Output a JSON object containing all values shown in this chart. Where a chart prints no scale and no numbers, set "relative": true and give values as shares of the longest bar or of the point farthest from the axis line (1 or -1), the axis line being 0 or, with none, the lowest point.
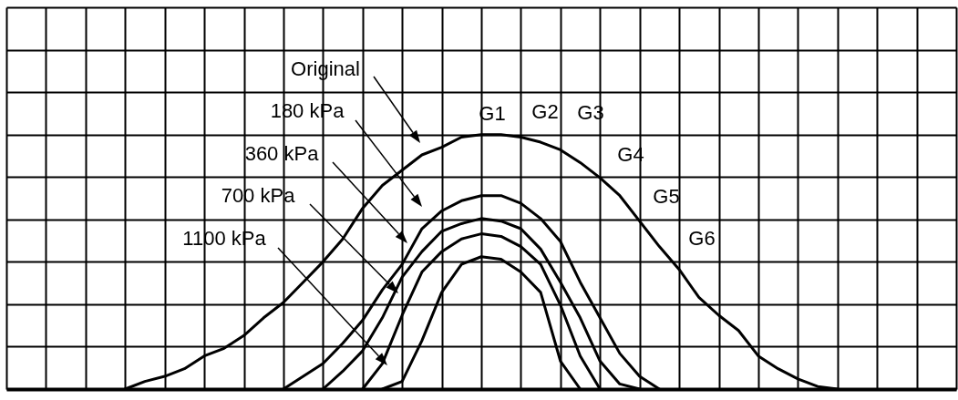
{
  "chart_data": {
    "type": "line",
    "relative": true,
    "grid": true,
    "categories": [
      null,
      null,
      null,
      null,
      null,
      null,
      null,
      null,
      null,
      null,
      null,
      null,
      null,
      null,
      null,
      null,
      null,
      null,
      null,
      null,
      null,
      null,
      null,
      null,
      null,
      null,
      null,
      null,
      null,
      null,
      null,
      null,
      null,
      null,
      null,
      null,
      null,
      null,
      null,
      null,
      null,
      null,
      null,
      null,
      null,
      null,
      null,
      null,
      null
    ],
    "series": [
      {
        "name": "Original",
        "color": "#000000",
        "values": [
          null,
          null,
          null,
          null,
          null,
          null,
          0,
          0.03,
          0.05,
          0.08,
          0.13,
          0.16,
          0.21,
          0.28,
          0.34,
          0.42,
          0.5,
          0.59,
          0.71,
          0.8,
          0.86,
          0.92,
          0.95,
          0.99,
          1,
          1,
          0.99,
          0.97,
          0.94,
          0.89,
          0.83,
          0.76,
          0.66,
          0.56,
          0.47,
          0.36,
          0.29,
          0.23,
          0.13,
          0.08,
          0.04,
          0.01,
          0,
          null,
          null,
          null,
          null,
          null,
          null
        ]
      },
      {
        "name": "180 kPa",
        "color": "#000000",
        "values": [
          null,
          null,
          null,
          null,
          null,
          null,
          null,
          null,
          null,
          null,
          null,
          null,
          null,
          null,
          0,
          0.05,
          0.1,
          0.18,
          0.27,
          0.39,
          0.49,
          0.63,
          0.7,
          0.74,
          0.76,
          0.76,
          0.73,
          0.67,
          0.58,
          0.42,
          0.28,
          0.14,
          0.05,
          0,
          null,
          null,
          null,
          null,
          null,
          null,
          null,
          null,
          null,
          null,
          null,
          null,
          null,
          null,
          null
        ]
      },
      {
        "name": "360 kPa",
        "color": "#000000",
        "values": [
          null,
          null,
          null,
          null,
          null,
          null,
          null,
          null,
          null,
          null,
          null,
          null,
          null,
          null,
          null,
          null,
          0,
          0.07,
          0.15,
          0.28,
          0.44,
          0.54,
          0.62,
          0.65,
          0.67,
          0.66,
          0.63,
          0.55,
          0.42,
          0.28,
          0.11,
          0.02,
          0,
          null,
          null,
          null,
          null,
          null,
          null,
          null,
          null,
          null,
          null,
          null,
          null,
          null,
          null,
          null,
          null
        ]
      },
      {
        "name": "700 kPa",
        "color": "#000000",
        "values": [
          null,
          null,
          null,
          null,
          null,
          null,
          null,
          null,
          null,
          null,
          null,
          null,
          null,
          null,
          null,
          null,
          null,
          null,
          0,
          0.1,
          0.29,
          0.46,
          0.54,
          0.59,
          0.61,
          0.6,
          0.56,
          0.49,
          0.33,
          0.13,
          0,
          null,
          null,
          null,
          null,
          null,
          null,
          null,
          null,
          null,
          null,
          null,
          null,
          null,
          null,
          null,
          null,
          null,
          null
        ]
      },
      {
        "name": "1100 kPa",
        "color": "#000000",
        "values": [
          null,
          null,
          null,
          null,
          null,
          null,
          null,
          null,
          null,
          null,
          null,
          null,
          null,
          null,
          null,
          null,
          null,
          null,
          null,
          0,
          0.03,
          0.19,
          0.38,
          0.49,
          0.52,
          0.51,
          0.46,
          0.38,
          0.11,
          0,
          null,
          null,
          null,
          null,
          null,
          null,
          null,
          null,
          null,
          null,
          null,
          null,
          null,
          null,
          null,
          null,
          null,
          null,
          null
        ]
      }
    ],
    "annotations": [
      "G1",
      "G2",
      "G3",
      "G4",
      "G5",
      "G6"
    ]
  }
}
